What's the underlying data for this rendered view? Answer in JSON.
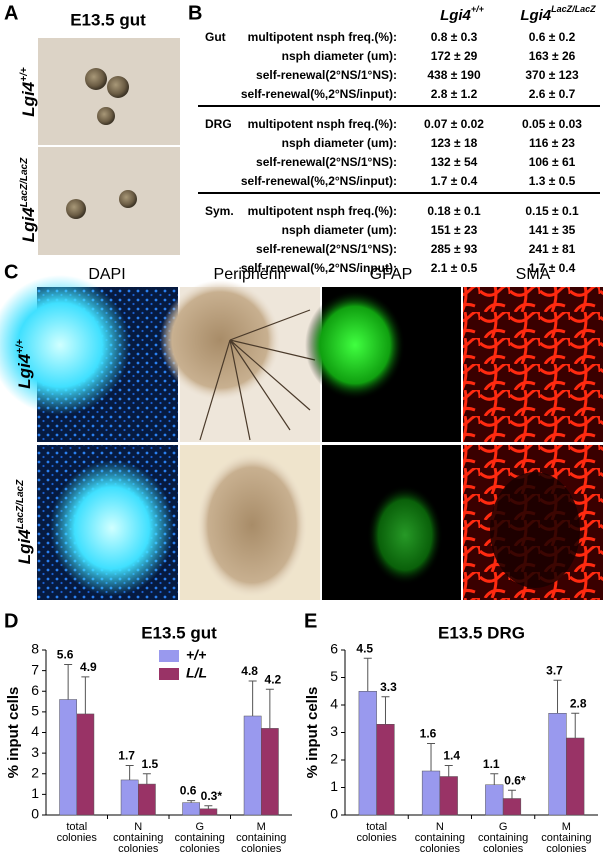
{
  "panel_a": {
    "label": "A",
    "title": "E13.5 gut",
    "rows": [
      {
        "gene": "Lgi4",
        "genotype": "+/+"
      },
      {
        "gene": "Lgi4",
        "genotype": "LacZ/LacZ"
      }
    ]
  },
  "panel_b": {
    "label": "B",
    "columns": [
      {
        "gene": "Lgi4",
        "genotype": "+/+"
      },
      {
        "gene": "Lgi4",
        "genotype": "LacZ/LacZ"
      }
    ],
    "groups": [
      {
        "name": "Gut",
        "rows": [
          [
            "multipotent nsph freq.(%):",
            "0.8 ± 0.3",
            "0.6 ± 0.2"
          ],
          [
            "nsph diameter (um):",
            "172 ± 29",
            "163 ± 26"
          ],
          [
            "self-renewal(2°NS/1°NS):",
            "438 ± 190",
            "370 ± 123"
          ],
          [
            "self-renewal(%,2°NS/input):",
            "2.8 ± 1.2",
            "2.6 ± 0.7"
          ]
        ]
      },
      {
        "name": "DRG",
        "rows": [
          [
            "multipotent nsph freq.(%):",
            "0.07 ± 0.02",
            "0.05 ± 0.03"
          ],
          [
            "nsph diameter (um):",
            "123 ± 18",
            "116 ± 23"
          ],
          [
            "self-renewal(2°NS/1°NS):",
            "132 ± 54",
            "106 ± 61"
          ],
          [
            "self-renewal(%,2°NS/input):",
            "1.7 ± 0.4",
            "1.3 ± 0.5"
          ]
        ]
      },
      {
        "name": "Sym.",
        "rows": [
          [
            "multipotent nsph freq.(%):",
            "0.18 ± 0.1",
            "0.15 ± 0.1"
          ],
          [
            "nsph diameter (um):",
            "151 ± 23",
            "141 ± 35"
          ],
          [
            "self-renewal(2°NS/1°NS):",
            "285 ± 93",
            "241 ± 81"
          ],
          [
            "self-renewal(%,2°NS/input):",
            "2.1 ± 0.5",
            "1.7 ± 0.4"
          ]
        ]
      }
    ]
  },
  "panel_c": {
    "label": "C",
    "channels": [
      "DAPI",
      "Peripherin",
      "GFAP",
      "SMA"
    ],
    "channel_colors": [
      "#1e90ff",
      "#000000",
      "#22cc22",
      "#ee1111"
    ],
    "rows": [
      {
        "gene": "Lgi4",
        "genotype": "+/+"
      },
      {
        "gene": "Lgi4",
        "genotype": "LacZ/LacZ"
      }
    ]
  },
  "chart_data": [
    {
      "type": "bar",
      "label": "D",
      "title": "E13.5 gut",
      "ylabel": "% input cells",
      "categories": [
        "total colonies",
        "N containing colonies",
        "G containing colonies",
        "M containing colonies"
      ],
      "series": [
        {
          "name": "+/+",
          "color": "#9999ee",
          "values": [
            5.6,
            1.7,
            0.6,
            4.8
          ],
          "errors": [
            1.7,
            0.7,
            0.1,
            1.7
          ]
        },
        {
          "name": "L/L",
          "color": "#993366",
          "values": [
            4.9,
            1.5,
            0.3,
            4.2
          ],
          "errors": [
            1.8,
            0.5,
            0.15,
            1.9
          ],
          "value_labels": [
            "4.9",
            "1.5",
            "0.3*",
            "4.2"
          ]
        }
      ],
      "ylim": [
        0,
        8
      ],
      "yticks": [
        0,
        1,
        2,
        3,
        4,
        5,
        6,
        7,
        8
      ],
      "legend": "upper center"
    },
    {
      "type": "bar",
      "label": "E",
      "title": "E13.5 DRG",
      "ylabel": "% input cells",
      "categories": [
        "total colonies",
        "N containing colonies",
        "G containing colonies",
        "M containing colonies"
      ],
      "series": [
        {
          "name": "+/+",
          "color": "#9999ee",
          "values": [
            4.5,
            1.6,
            1.1,
            3.7
          ],
          "errors": [
            1.2,
            1.0,
            0.4,
            1.2
          ]
        },
        {
          "name": "L/L",
          "color": "#993366",
          "values": [
            3.3,
            1.4,
            0.6,
            2.8
          ],
          "errors": [
            1.0,
            0.4,
            0.3,
            0.9
          ],
          "value_labels": [
            "3.3",
            "1.4",
            "0.6*",
            "2.8"
          ]
        }
      ],
      "ylim": [
        0,
        6
      ],
      "yticks": [
        0,
        1,
        2,
        3,
        4,
        5,
        6
      ],
      "legend": "none"
    }
  ]
}
